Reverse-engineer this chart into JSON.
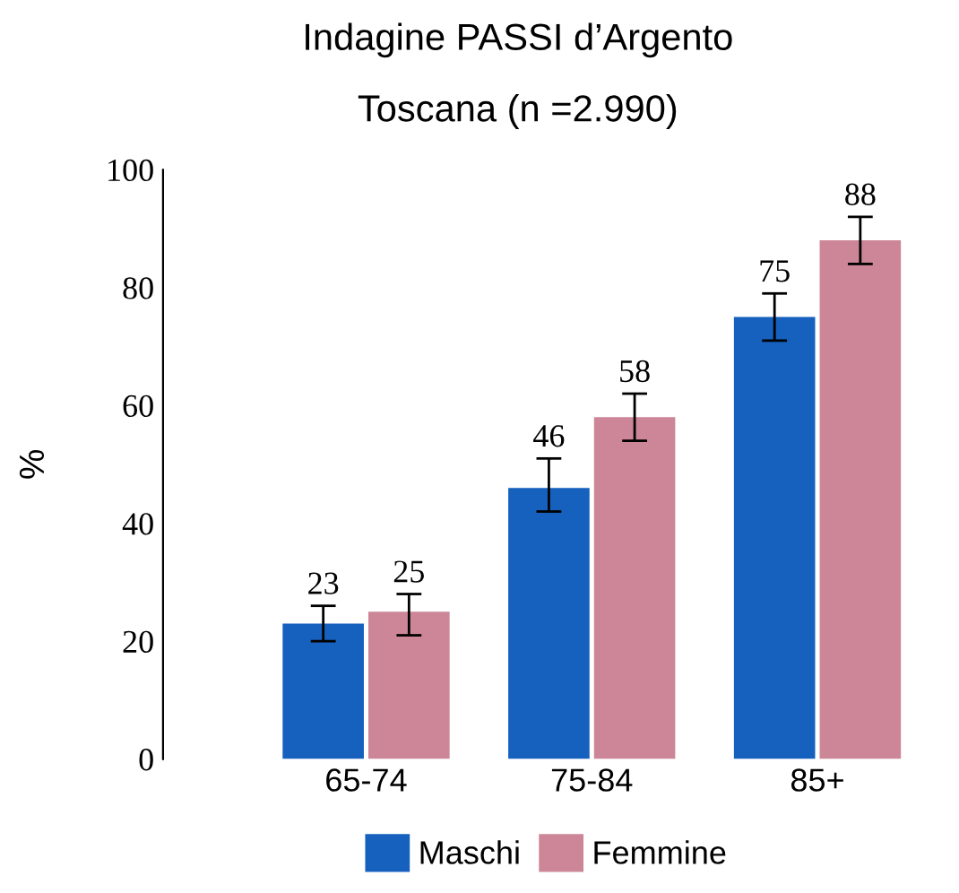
{
  "chart_data": {
    "type": "bar",
    "title": "Indagine PASSI d’Argento",
    "subtitle": "Toscana (n =2.990)",
    "ylabel": "%",
    "categories": [
      "65-74",
      "75-84",
      "85+"
    ],
    "series": [
      {
        "name": "Maschi",
        "color": "#1660be",
        "values": [
          23,
          46,
          75
        ],
        "errors": [
          [
            20,
            26
          ],
          [
            42,
            51
          ],
          [
            71,
            79
          ]
        ]
      },
      {
        "name": "Femmine",
        "color": "#cc8697",
        "values": [
          25,
          58,
          88
        ],
        "errors": [
          [
            21,
            28
          ],
          [
            54,
            62
          ],
          [
            84,
            92
          ]
        ]
      }
    ],
    "ylim": [
      0,
      100
    ],
    "yticks": [
      0,
      20,
      40,
      60,
      80,
      100
    ],
    "data_labels": true,
    "grid": false,
    "legend": "bottom"
  }
}
